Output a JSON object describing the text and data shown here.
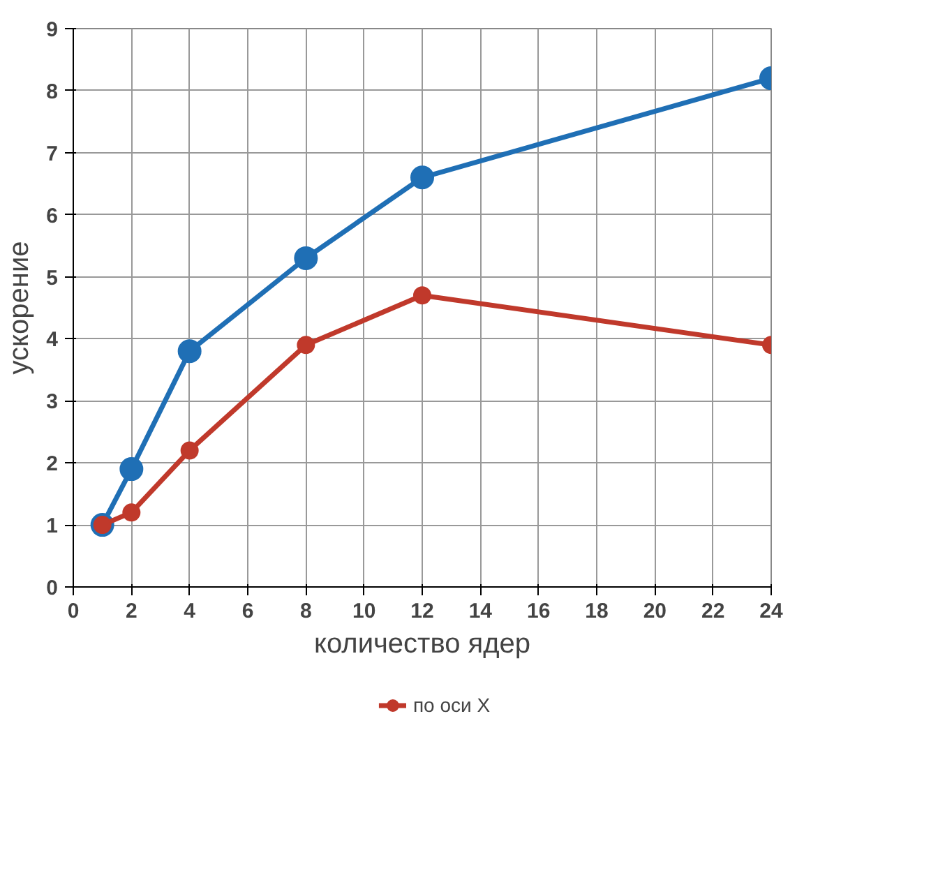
{
  "chart_data": {
    "type": "line",
    "xlabel": "количество ядер",
    "ylabel": "ускорение",
    "x": [
      1,
      2,
      4,
      8,
      12,
      24
    ],
    "series": [
      {
        "color": "#1f6fb5",
        "values": [
          1,
          1.9,
          3.8,
          5.3,
          6.6,
          8.2
        ]
      },
      {
        "name": "по оси X",
        "color": "#c0392b",
        "values": [
          1,
          1.2,
          2.2,
          3.9,
          4.7,
          3.9
        ]
      }
    ],
    "xlim": [
      0,
      24
    ],
    "xticks": [
      0,
      2,
      4,
      6,
      8,
      10,
      12,
      14,
      16,
      18,
      20,
      22,
      24
    ],
    "ylim": [
      0,
      9
    ],
    "yticks": [
      0,
      1,
      2,
      3,
      4,
      5,
      6,
      7,
      8,
      9
    ],
    "grid": true,
    "legend": "bottom",
    "marker": "circle",
    "line_style": "solid"
  }
}
